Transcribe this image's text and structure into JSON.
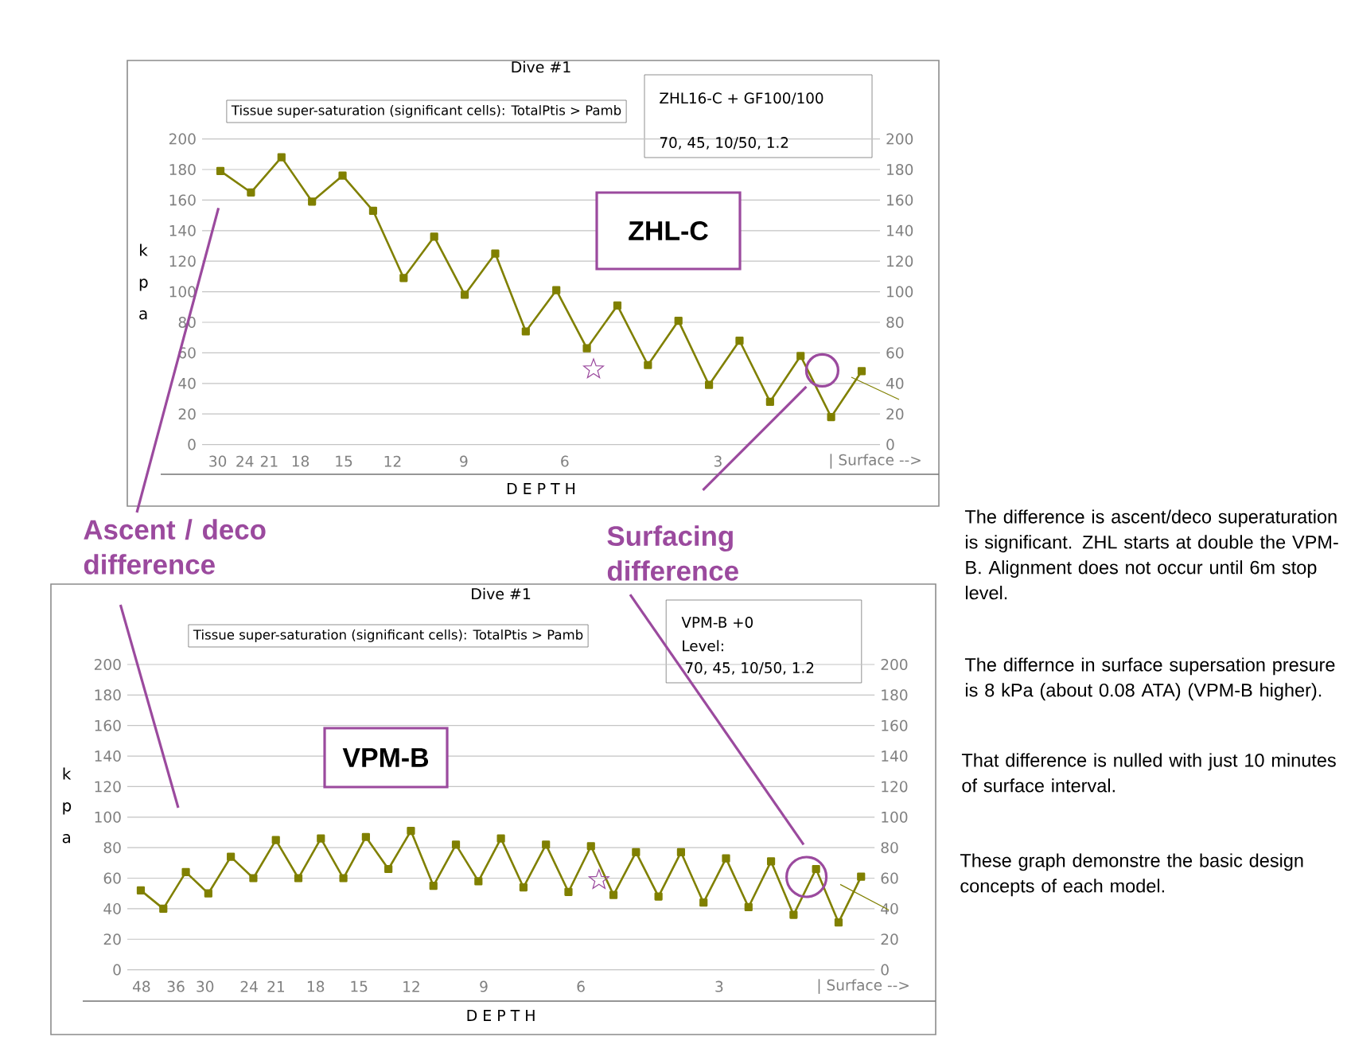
{
  "chart_data": [
    {
      "type": "line",
      "title": "Dive #1",
      "xlabel": "D E P T H",
      "ylabel": "k p a",
      "marker": "square",
      "grid": "y",
      "color": "#808000",
      "categories": [
        null,
        null,
        null,
        null,
        null,
        null,
        null,
        null,
        null,
        null,
        null,
        null,
        null,
        null,
        null,
        null,
        null,
        null,
        null,
        null,
        null,
        null
      ],
      "values": [
        179,
        165,
        188,
        159,
        176,
        153,
        109,
        136,
        98,
        125,
        74,
        101,
        63,
        91,
        52,
        81,
        39,
        68,
        28,
        58,
        18,
        48
      ],
      "ylim": [
        0,
        200
      ],
      "yticks": [
        0,
        20,
        40,
        60,
        80,
        100,
        120,
        140,
        160,
        180,
        200
      ],
      "y2lim": [
        0,
        200
      ],
      "y2ticks": [
        0,
        20,
        40,
        60,
        80,
        100,
        120,
        140,
        160,
        180,
        200
      ],
      "annotations": [
        "Tissue super-saturation (significant cells): TotalPtis > Pamb",
        "ZHL16-C + GF100/100",
        "70, 45, 10/50, 1.2",
        "ZHL-C",
        "Ascent / deco difference",
        "Surfacing difference",
        "30",
        "24",
        "21",
        "18",
        "15",
        "12",
        "9",
        "6",
        "3",
        "| Surface -->"
      ]
    },
    {
      "type": "line",
      "title": "Dive #1",
      "xlabel": "D E P T H",
      "ylabel": "k p a",
      "marker": "square",
      "grid": "y",
      "color": "#808000",
      "categories": [
        null,
        null,
        null,
        null,
        null,
        null,
        null,
        null,
        null,
        null,
        null,
        null,
        null,
        null,
        null,
        null,
        null,
        null,
        null,
        null,
        null,
        null,
        null,
        null,
        null,
        null,
        null,
        null,
        null,
        null,
        null,
        null,
        null
      ],
      "values": [
        52,
        40,
        64,
        50,
        74,
        60,
        85,
        60,
        86,
        60,
        87,
        66,
        91,
        55,
        82,
        58,
        86,
        54,
        82,
        51,
        81,
        49,
        77,
        48,
        77,
        44,
        73,
        41,
        71,
        36,
        66,
        31,
        61
      ],
      "ylim": [
        0,
        200
      ],
      "yticks": [
        0,
        20,
        40,
        60,
        80,
        100,
        120,
        140,
        160,
        180,
        200
      ],
      "y2lim": [
        0,
        200
      ],
      "y2ticks": [
        0,
        20,
        40,
        60,
        80,
        100,
        120,
        140,
        160,
        180,
        200
      ],
      "annotations": [
        "Tissue super-saturation (significant cells): TotalPtis > Pamb",
        "VPM-B +0",
        "Level:",
        "70, 45, 10/50, 1.2",
        "VPM-B",
        "The difference is ascent/deco superaturation is significant.  ZHL starts at double the VPM-B.  Alignment does not occur until 6m stop level.",
        "The differnce in surface supersation presure is 8 kPa (about 0.08 ATA) (VPM-B higher).",
        "That difference is nulled with just 10 minutes of surface interval.",
        "These graph demonstre the basic design concepts of each model.",
        "48",
        "36",
        "30",
        "24",
        "21",
        "18",
        "15",
        "12",
        "9",
        "6",
        "3",
        "| Surface -->"
      ]
    }
  ]
}
